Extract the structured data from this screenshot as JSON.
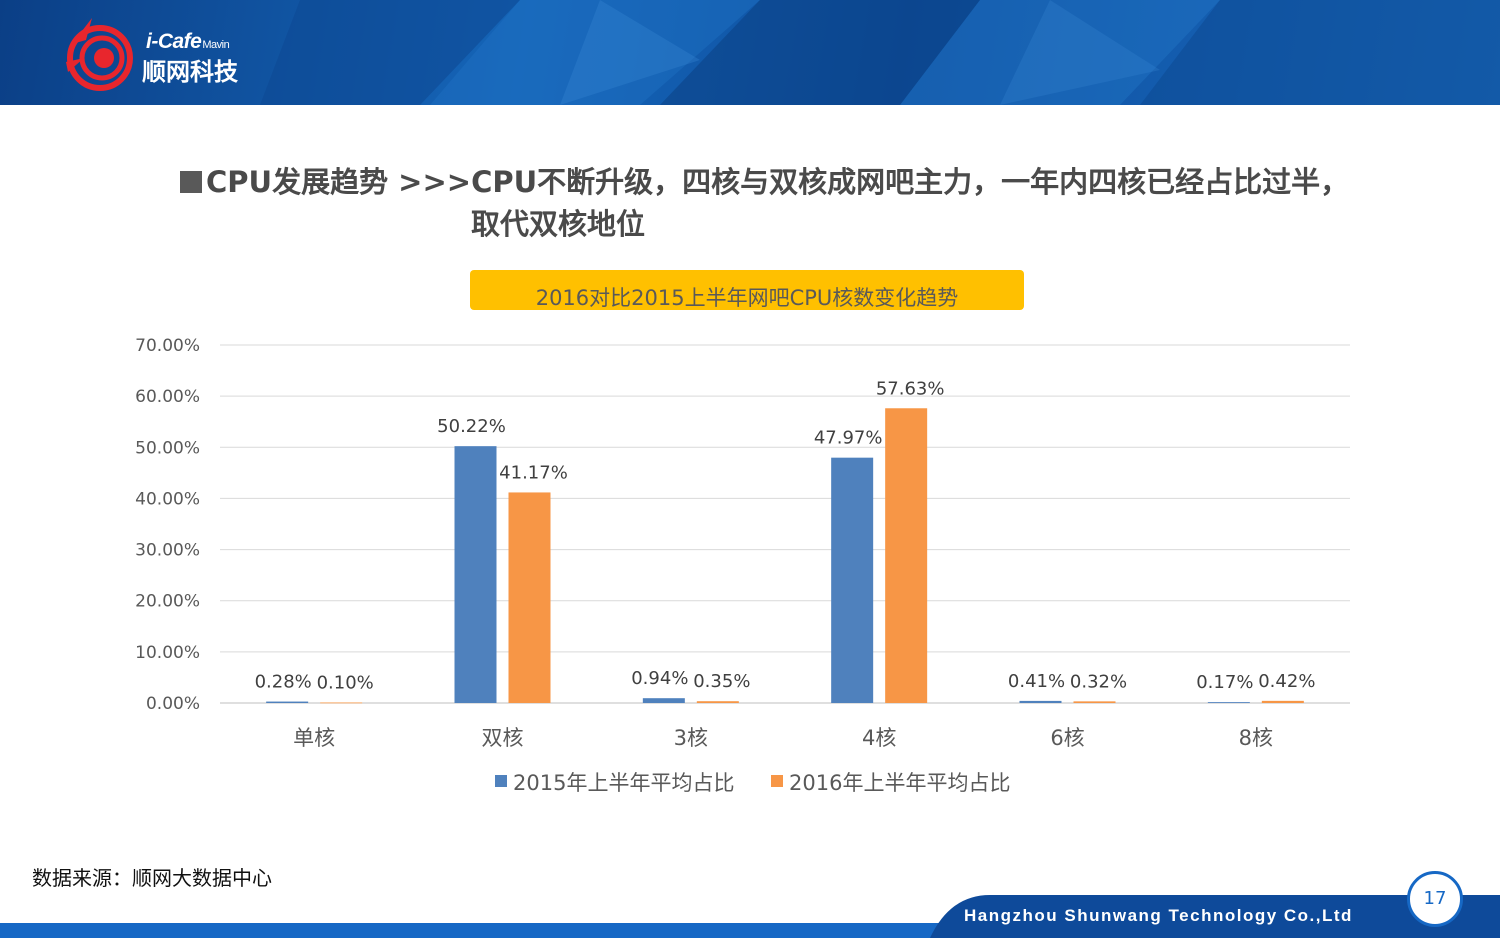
{
  "header": {
    "brand": "i-Cafe",
    "brand_sub": "Mavin",
    "company_cn": "顺网科技"
  },
  "headline": {
    "line1": "CPU发展趋势  >>>CPU不断升级，四核与双核成网吧主力，一年内四核已经占比过半，",
    "line2": "取代双核地位"
  },
  "chart_data": {
    "type": "bar",
    "title": "2016对比2015上半年网吧CPU核数变化趋势",
    "categories": [
      "单核",
      "双核",
      "3核",
      "4核",
      "6核",
      "8核"
    ],
    "series": [
      {
        "name": "2015年上半年平均占比",
        "values": [
          0.28,
          50.22,
          0.94,
          47.97,
          0.41,
          0.17
        ],
        "labels": [
          "0.28%",
          "50.22%",
          "0.94%",
          "47.97%",
          "0.41%",
          "0.17%"
        ],
        "color": "#4f81bd"
      },
      {
        "name": "2016年上半年平均占比",
        "values": [
          0.1,
          41.17,
          0.35,
          57.63,
          0.32,
          0.42
        ],
        "labels": [
          "0.10%",
          "41.17%",
          "0.35%",
          "57.63%",
          "0.32%",
          "0.42%"
        ],
        "color": "#f79646"
      }
    ],
    "ylim": [
      0,
      70
    ],
    "yticks": [
      "0.00%",
      "10.00%",
      "20.00%",
      "30.00%",
      "40.00%",
      "50.00%",
      "60.00%",
      "70.00%"
    ],
    "grid": true,
    "legend": "bottom"
  },
  "source": "数据来源：顺网大数据中心",
  "footer": {
    "company_en": "Hangzhou Shunwang Technology Co.,Ltd",
    "page": "17"
  },
  "colors": {
    "header_blue": "#1565b8",
    "title_yellow": "#ffc000"
  }
}
